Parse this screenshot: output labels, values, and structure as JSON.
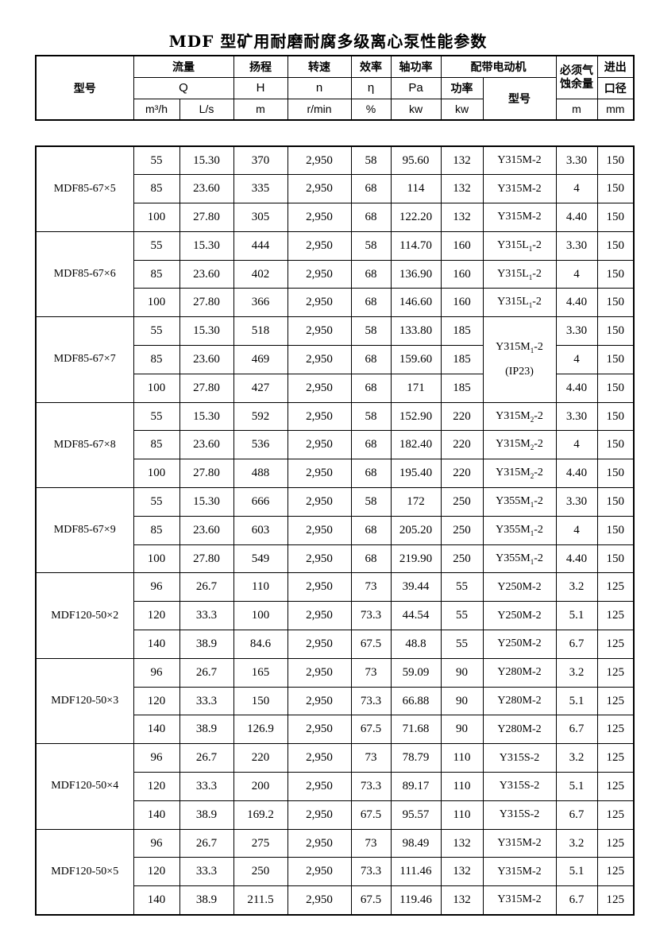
{
  "title": "MDF 型矿用耐磨耐腐多级离心泵性能参数",
  "header": {
    "model_label": "型号",
    "flow": {
      "label": "流量",
      "symbol": "Q",
      "unit_m3h": "m³/h",
      "unit_ls": "L/s"
    },
    "head": {
      "label": "扬程",
      "symbol": "H",
      "unit": "m"
    },
    "speed": {
      "label": "转速",
      "symbol": "n",
      "unit": "r/min"
    },
    "efficiency": {
      "label": "效率",
      "symbol": "η",
      "unit": "%"
    },
    "shaft_power": {
      "label": "轴功率",
      "symbol": "Pa",
      "unit": "kw"
    },
    "motor": {
      "label": "配带电动机",
      "power_label": "功率",
      "power_unit": "kw",
      "model_label": "型号"
    },
    "npsh": {
      "label_line1": "必须气",
      "label_line2": "蚀余量",
      "unit": "m"
    },
    "port": {
      "label_line1": "进出",
      "label_line2": "口径",
      "unit": "mm"
    }
  },
  "blocks": [
    {
      "model": "MDF85-67×5",
      "rows": [
        {
          "q_m3h": "55",
          "q_ls": "15.30",
          "h": "370",
          "n": "2,950",
          "eta": "58",
          "pa": "95.60",
          "kw": "132",
          "motor": {
            "base": "Y315M",
            "sub": "",
            "tail": "-2"
          },
          "npsh": "3.30",
          "dn": "150"
        },
        {
          "q_m3h": "85",
          "q_ls": "23.60",
          "h": "335",
          "n": "2,950",
          "eta": "68",
          "pa": "114",
          "kw": "132",
          "motor": {
            "base": "Y315M",
            "sub": "",
            "tail": "-2"
          },
          "npsh": "4",
          "dn": "150"
        },
        {
          "q_m3h": "100",
          "q_ls": "27.80",
          "h": "305",
          "n": "2,950",
          "eta": "68",
          "pa": "122.20",
          "kw": "132",
          "motor": {
            "base": "Y315M",
            "sub": "",
            "tail": "-2"
          },
          "npsh": "4.40",
          "dn": "150"
        }
      ]
    },
    {
      "model": "MDF85-67×6",
      "rows": [
        {
          "q_m3h": "55",
          "q_ls": "15.30",
          "h": "444",
          "n": "2,950",
          "eta": "58",
          "pa": "114.70",
          "kw": "160",
          "motor": {
            "base": "Y315L",
            "sub": "1",
            "tail": "-2"
          },
          "npsh": "3.30",
          "dn": "150"
        },
        {
          "q_m3h": "85",
          "q_ls": "23.60",
          "h": "402",
          "n": "2,950",
          "eta": "68",
          "pa": "136.90",
          "kw": "160",
          "motor": {
            "base": "Y315L",
            "sub": "1",
            "tail": "-2"
          },
          "npsh": "4",
          "dn": "150"
        },
        {
          "q_m3h": "100",
          "q_ls": "27.80",
          "h": "366",
          "n": "2,950",
          "eta": "68",
          "pa": "146.60",
          "kw": "160",
          "motor": {
            "base": "Y315L",
            "sub": "1",
            "tail": "-2"
          },
          "npsh": "4.40",
          "dn": "150"
        }
      ]
    },
    {
      "model": "MDF85-67×7",
      "motor_merged": {
        "base": "Y315M",
        "sub": "1",
        "tail": "-2",
        "note": "(IP23)"
      },
      "rows": [
        {
          "q_m3h": "55",
          "q_ls": "15.30",
          "h": "518",
          "n": "2,950",
          "eta": "58",
          "pa": "133.80",
          "kw": "185",
          "npsh": "3.30",
          "dn": "150"
        },
        {
          "q_m3h": "85",
          "q_ls": "23.60",
          "h": "469",
          "n": "2,950",
          "eta": "68",
          "pa": "159.60",
          "kw": "185",
          "npsh": "4",
          "dn": "150"
        },
        {
          "q_m3h": "100",
          "q_ls": "27.80",
          "h": "427",
          "n": "2,950",
          "eta": "68",
          "pa": "171",
          "kw": "185",
          "npsh": "4.40",
          "dn": "150"
        }
      ]
    },
    {
      "model": "MDF85-67×8",
      "rows": [
        {
          "q_m3h": "55",
          "q_ls": "15.30",
          "h": "592",
          "n": "2,950",
          "eta": "58",
          "pa": "152.90",
          "kw": "220",
          "motor": {
            "base": "Y315M",
            "sub": "2",
            "tail": "-2"
          },
          "npsh": "3.30",
          "dn": "150"
        },
        {
          "q_m3h": "85",
          "q_ls": "23.60",
          "h": "536",
          "n": "2,950",
          "eta": "68",
          "pa": "182.40",
          "kw": "220",
          "motor": {
            "base": "Y315M",
            "sub": "2",
            "tail": "-2"
          },
          "npsh": "4",
          "dn": "150"
        },
        {
          "q_m3h": "100",
          "q_ls": "27.80",
          "h": "488",
          "n": "2,950",
          "eta": "68",
          "pa": "195.40",
          "kw": "220",
          "motor": {
            "base": "Y315M",
            "sub": "2",
            "tail": "-2"
          },
          "npsh": "4.40",
          "dn": "150"
        }
      ]
    },
    {
      "model": "MDF85-67×9",
      "rows": [
        {
          "q_m3h": "55",
          "q_ls": "15.30",
          "h": "666",
          "n": "2,950",
          "eta": "58",
          "pa": "172",
          "kw": "250",
          "motor": {
            "base": "Y355M",
            "sub": "1",
            "tail": "-2"
          },
          "npsh": "3.30",
          "dn": "150"
        },
        {
          "q_m3h": "85",
          "q_ls": "23.60",
          "h": "603",
          "n": "2,950",
          "eta": "68",
          "pa": "205.20",
          "kw": "250",
          "motor": {
            "base": "Y355M",
            "sub": "1",
            "tail": "-2"
          },
          "npsh": "4",
          "dn": "150"
        },
        {
          "q_m3h": "100",
          "q_ls": "27.80",
          "h": "549",
          "n": "2,950",
          "eta": "68",
          "pa": "219.90",
          "kw": "250",
          "motor": {
            "base": "Y355M",
            "sub": "1",
            "tail": "-2"
          },
          "npsh": "4.40",
          "dn": "150"
        }
      ]
    },
    {
      "model": "MDF120-50×2",
      "rows": [
        {
          "q_m3h": "96",
          "q_ls": "26.7",
          "h": "110",
          "n": "2,950",
          "eta": "73",
          "pa": "39.44",
          "kw": "55",
          "motor": {
            "base": "Y250M",
            "sub": "",
            "tail": "-2"
          },
          "npsh": "3.2",
          "dn": "125"
        },
        {
          "q_m3h": "120",
          "q_ls": "33.3",
          "h": "100",
          "n": "2,950",
          "eta": "73.3",
          "pa": "44.54",
          "kw": "55",
          "motor": {
            "base": "Y250M",
            "sub": "",
            "tail": "-2"
          },
          "npsh": "5.1",
          "dn": "125"
        },
        {
          "q_m3h": "140",
          "q_ls": "38.9",
          "h": "84.6",
          "n": "2,950",
          "eta": "67.5",
          "pa": "48.8",
          "kw": "55",
          "motor": {
            "base": "Y250M",
            "sub": "",
            "tail": "-2"
          },
          "npsh": "6.7",
          "dn": "125"
        }
      ]
    },
    {
      "model": "MDF120-50×3",
      "rows": [
        {
          "q_m3h": "96",
          "q_ls": "26.7",
          "h": "165",
          "n": "2,950",
          "eta": "73",
          "pa": "59.09",
          "kw": "90",
          "motor": {
            "base": "Y280M",
            "sub": "",
            "tail": "-2"
          },
          "npsh": "3.2",
          "dn": "125"
        },
        {
          "q_m3h": "120",
          "q_ls": "33.3",
          "h": "150",
          "n": "2,950",
          "eta": "73.3",
          "pa": "66.88",
          "kw": "90",
          "motor": {
            "base": "Y280M",
            "sub": "",
            "tail": "-2"
          },
          "npsh": "5.1",
          "dn": "125"
        },
        {
          "q_m3h": "140",
          "q_ls": "38.9",
          "h": "126.9",
          "n": "2,950",
          "eta": "67.5",
          "pa": "71.68",
          "kw": "90",
          "motor": {
            "base": "Y280M",
            "sub": "",
            "tail": "-2"
          },
          "npsh": "6.7",
          "dn": "125"
        }
      ]
    },
    {
      "model": "MDF120-50×4",
      "rows": [
        {
          "q_m3h": "96",
          "q_ls": "26.7",
          "h": "220",
          "n": "2,950",
          "eta": "73",
          "pa": "78.79",
          "kw": "110",
          "motor": {
            "base": "Y315S",
            "sub": "",
            "tail": "-2"
          },
          "npsh": "3.2",
          "dn": "125"
        },
        {
          "q_m3h": "120",
          "q_ls": "33.3",
          "h": "200",
          "n": "2,950",
          "eta": "73.3",
          "pa": "89.17",
          "kw": "110",
          "motor": {
            "base": "Y315S",
            "sub": "",
            "tail": "-2"
          },
          "npsh": "5.1",
          "dn": "125"
        },
        {
          "q_m3h": "140",
          "q_ls": "38.9",
          "h": "169.2",
          "n": "2,950",
          "eta": "67.5",
          "pa": "95.57",
          "kw": "110",
          "motor": {
            "base": "Y315S",
            "sub": "",
            "tail": "-2"
          },
          "npsh": "6.7",
          "dn": "125"
        }
      ]
    },
    {
      "model": "MDF120-50×5",
      "rows": [
        {
          "q_m3h": "96",
          "q_ls": "26.7",
          "h": "275",
          "n": "2,950",
          "eta": "73",
          "pa": "98.49",
          "kw": "132",
          "motor": {
            "base": "Y315M",
            "sub": "",
            "tail": "-2"
          },
          "npsh": "3.2",
          "dn": "125"
        },
        {
          "q_m3h": "120",
          "q_ls": "33.3",
          "h": "250",
          "n": "2,950",
          "eta": "73.3",
          "pa": "111.46",
          "kw": "132",
          "motor": {
            "base": "Y315M",
            "sub": "",
            "tail": "-2"
          },
          "npsh": "5.1",
          "dn": "125"
        },
        {
          "q_m3h": "140",
          "q_ls": "38.9",
          "h": "211.5",
          "n": "2,950",
          "eta": "67.5",
          "pa": "119.46",
          "kw": "132",
          "motor": {
            "base": "Y315M",
            "sub": "",
            "tail": "-2"
          },
          "npsh": "6.7",
          "dn": "125"
        }
      ]
    }
  ]
}
